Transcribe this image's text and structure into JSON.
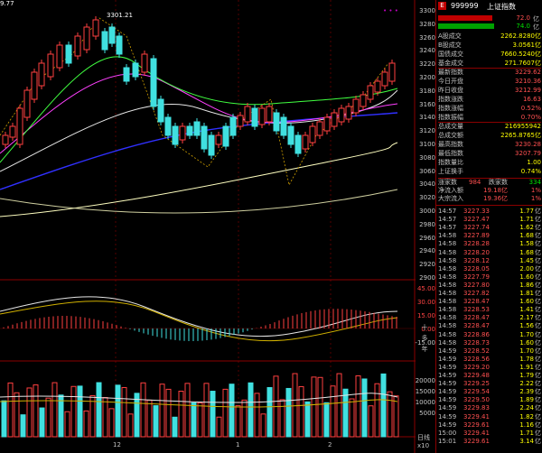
{
  "chart": {
    "corner_value": "9.77",
    "peak_label": "3301.21",
    "x_labels": [
      "12",
      "1",
      "2"
    ],
    "price_axis": [
      "3300",
      "3280",
      "3260",
      "3240",
      "3220",
      "3200",
      "3180",
      "3160",
      "3140",
      "3120",
      "3100",
      "3080",
      "3060",
      "3040",
      "3020",
      "3000",
      "2980",
      "2960",
      "2940",
      "2920",
      "2900"
    ],
    "macd_axis": [
      "45.00",
      "30.00",
      "15.00",
      "0.00",
      "-15.00"
    ],
    "vol_axis": [
      "20000",
      "15000",
      "10000",
      "5000"
    ],
    "vol_unit": "x10",
    "bottom_tab": "日线",
    "side_tabs": [
      "十",
      "多",
      "年"
    ],
    "top_dots": "• • •"
  },
  "quote": {
    "code": "999999",
    "name": "上证指数",
    "box_char": "E",
    "bar_top_val": "72.0",
    "bar_mid_val": "74.0",
    "rows": [
      {
        "label": "A股成交",
        "value": "2262.8280亿"
      },
      {
        "label": "B股成交",
        "value": "3.0561亿"
      },
      {
        "label": "国债成交",
        "value": "7660.5240亿"
      },
      {
        "label": "基金成交",
        "value": "271.7607亿"
      },
      {
        "label": "最新指数",
        "value": "3229.62"
      },
      {
        "label": "今日开盘",
        "value": "3210.36"
      },
      {
        "label": "昨日收盘",
        "value": "3212.99"
      },
      {
        "label": "指数涨跌",
        "value": "16.63"
      },
      {
        "label": "指数涨幅",
        "value": "0.52%"
      },
      {
        "label": "指数振幅",
        "value": "0.70%"
      },
      {
        "label": "总成交量",
        "value": "216955942"
      },
      {
        "label": "总成交额",
        "value": "2265.8765亿"
      },
      {
        "label": "最高指数",
        "value": "3230.28"
      },
      {
        "label": "最低指数",
        "value": "3207.79"
      },
      {
        "label": "指数量比",
        "value": "1.00"
      },
      {
        "label": "上证换手",
        "value": "0.74%"
      }
    ],
    "rise_label": "涨家数",
    "rise_count": "984",
    "fall_label": "跌家数",
    "fall_count": "334",
    "inflow_label": "净流入额",
    "inflow_value": "19.18亿",
    "inflow_pct": "1%",
    "big_inflow_label": "大宗流入",
    "big_inflow_value": "19.36亿",
    "big_inflow_pct": "1%"
  },
  "ticks": [
    {
      "t": "14:57",
      "p": "3227.33",
      "v": "1.77",
      "u": "亿"
    },
    {
      "t": "14:57",
      "p": "3227.47",
      "v": "1.71",
      "u": "亿"
    },
    {
      "t": "14:57",
      "p": "3227.74",
      "v": "1.62",
      "u": "亿"
    },
    {
      "t": "14:58",
      "p": "3227.89",
      "v": "1.68",
      "u": "亿"
    },
    {
      "t": "14:58",
      "p": "3228.28",
      "v": "1.58",
      "u": "亿"
    },
    {
      "t": "14:58",
      "p": "3228.20",
      "v": "1.68",
      "u": "亿"
    },
    {
      "t": "14:58",
      "p": "3228.12",
      "v": "1.45",
      "u": "亿"
    },
    {
      "t": "14:58",
      "p": "3228.05",
      "v": "2.00",
      "u": "亿"
    },
    {
      "t": "14:58",
      "p": "3227.79",
      "v": "1.60",
      "u": "亿"
    },
    {
      "t": "14:58",
      "p": "3227.80",
      "v": "1.86",
      "u": "亿"
    },
    {
      "t": "14:58",
      "p": "3227.82",
      "v": "1.81",
      "u": "亿"
    },
    {
      "t": "14:58",
      "p": "3228.47",
      "v": "1.60",
      "u": "亿"
    },
    {
      "t": "14:58",
      "p": "3228.53",
      "v": "1.41",
      "u": "亿"
    },
    {
      "t": "14:58",
      "p": "3228.47",
      "v": "2.17",
      "u": "亿"
    },
    {
      "t": "14:58",
      "p": "3228.47",
      "v": "1.56",
      "u": "亿"
    },
    {
      "t": "14:58",
      "p": "3228.86",
      "v": "1.70",
      "u": "亿"
    },
    {
      "t": "14:58",
      "p": "3228.73",
      "v": "1.60",
      "u": "亿"
    },
    {
      "t": "14:59",
      "p": "3228.52",
      "v": "1.70",
      "u": "亿"
    },
    {
      "t": "14:59",
      "p": "3228.56",
      "v": "1.78",
      "u": "亿"
    },
    {
      "t": "14:59",
      "p": "3229.20",
      "v": "1.91",
      "u": "亿"
    },
    {
      "t": "14:59",
      "p": "3229.48",
      "v": "1.79",
      "u": "亿"
    },
    {
      "t": "14:59",
      "p": "3229.25",
      "v": "2.22",
      "u": "亿"
    },
    {
      "t": "14:59",
      "p": "3229.54",
      "v": "2.39",
      "u": "亿"
    },
    {
      "t": "14:59",
      "p": "3229.50",
      "v": "1.89",
      "u": "亿"
    },
    {
      "t": "14:59",
      "p": "3229.83",
      "v": "2.24",
      "u": "亿"
    },
    {
      "t": "14:59",
      "p": "3229.41",
      "v": "1.82",
      "u": "亿"
    },
    {
      "t": "14:59",
      "p": "3229.61",
      "v": "1.16",
      "u": "亿"
    },
    {
      "t": "15:00",
      "p": "3229.41",
      "v": "1.71",
      "u": "亿"
    },
    {
      "t": "15:01",
      "p": "3229.61",
      "v": "3.14",
      "u": "亿"
    }
  ]
}
